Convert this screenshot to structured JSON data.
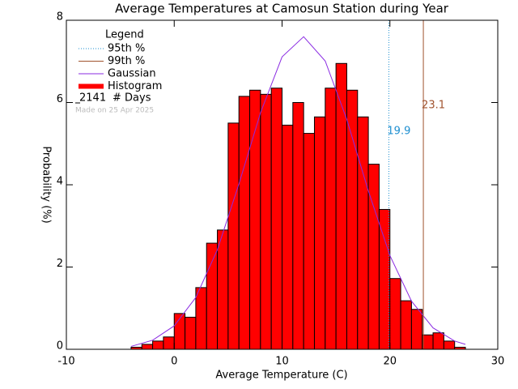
{
  "chart_data": {
    "type": "histogram",
    "title": "Average Temperatures at Camosun Station during Year",
    "x_label": "Average Temperature (C)",
    "y_label": "Probability (%)",
    "xlim": [
      -10,
      30
    ],
    "xticks": [
      -10,
      0,
      10,
      20,
      30
    ],
    "ylim": [
      0,
      8
    ],
    "yticks": [
      0,
      2,
      4,
      6,
      8
    ],
    "legend_title": "Legend",
    "histogram": {
      "name": "Histogram",
      "color": "#ff0000",
      "bins": [
        -4,
        -3,
        -2,
        -1,
        0,
        1,
        2,
        3,
        4,
        5,
        6,
        7,
        8,
        9,
        10,
        11,
        12,
        13,
        14,
        15,
        16,
        17,
        18,
        19,
        20,
        21,
        22,
        23,
        24,
        25,
        26,
        27
      ],
      "values": [
        0.05,
        0.12,
        0.2,
        0.3,
        0.87,
        0.78,
        1.5,
        2.58,
        2.9,
        5.5,
        6.15,
        6.3,
        6.2,
        6.35,
        5.45,
        6.0,
        5.25,
        5.65,
        6.35,
        6.95,
        6.3,
        5.65,
        4.5,
        3.4,
        1.72,
        1.18,
        0.97,
        0.35,
        0.4,
        0.2,
        0.05
      ]
    },
    "gaussian": {
      "name": "Gaussian",
      "color": "#8a2be2",
      "x": [
        -4,
        -2,
        0,
        2,
        4,
        6,
        8,
        10,
        12,
        14,
        16,
        18,
        20,
        22,
        24,
        26,
        27
      ],
      "values": [
        0.07,
        0.22,
        0.57,
        1.26,
        2.42,
        4.02,
        5.75,
        7.11,
        7.6,
        7.01,
        5.59,
        3.85,
        2.28,
        1.17,
        0.52,
        0.2,
        0.12
      ]
    },
    "percentiles": [
      {
        "name": "95th %",
        "value": 19.9,
        "color": "#1e8fd0",
        "style": "dotted"
      },
      {
        "name": "99th %",
        "value": 23.1,
        "color": "#a0522d",
        "style": "solid"
      }
    ],
    "days": {
      "count": 2141,
      "label": "# Days"
    },
    "made_on": "Made on 25 Apr 2025"
  }
}
